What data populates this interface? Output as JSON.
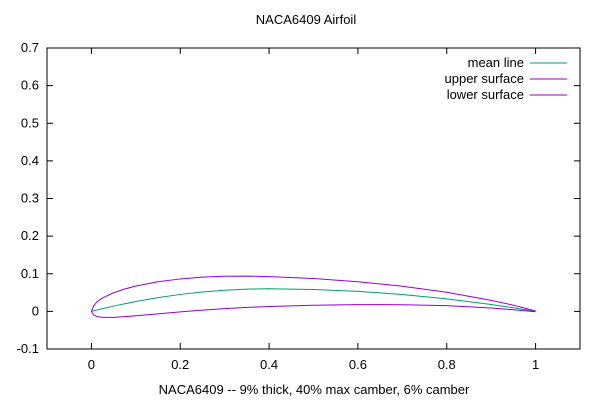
{
  "chart_data": {
    "type": "line",
    "title": "NACA6409 Airfoil",
    "xlabel": "NACA6409 -- 9% thick, 40% max camber, 6% camber",
    "ylabel": "",
    "xlim": [
      -0.1,
      1.1
    ],
    "ylim": [
      -0.1,
      0.7
    ],
    "x_ticks": [
      0,
      0.2,
      0.4,
      0.6,
      0.8,
      1
    ],
    "x_tick_labels": [
      "0",
      "0.2",
      "0.4",
      "0.6",
      "0.8",
      "1"
    ],
    "y_ticks": [
      -0.1,
      0,
      0.1,
      0.2,
      0.3,
      0.4,
      0.5,
      0.6,
      0.7
    ],
    "y_tick_labels": [
      "-0.1",
      "0",
      "0.1",
      "0.2",
      "0.3",
      "0.4",
      "0.5",
      "0.6",
      "0.7"
    ],
    "grid": false,
    "legend_position": "top-right",
    "series": [
      {
        "name": "mean line",
        "color": "#009e73",
        "x": [
          0,
          0.025,
          0.05,
          0.1,
          0.15,
          0.2,
          0.25,
          0.3,
          0.35,
          0.4,
          0.5,
          0.6,
          0.7,
          0.8,
          0.9,
          0.95,
          1.0
        ],
        "y": [
          0,
          0.0073,
          0.0141,
          0.0263,
          0.0366,
          0.045,
          0.0516,
          0.0563,
          0.0591,
          0.06,
          0.0583,
          0.0533,
          0.045,
          0.0333,
          0.0183,
          0.0096,
          0
        ]
      },
      {
        "name": "upper surface",
        "color": "#9400d3",
        "x": [
          0,
          0.005,
          0.0125,
          0.025,
          0.05,
          0.075,
          0.1,
          0.15,
          0.2,
          0.25,
          0.3,
          0.35,
          0.4,
          0.5,
          0.6,
          0.7,
          0.8,
          0.9,
          0.95,
          1.0
        ],
        "y": [
          0,
          0.0145,
          0.0254,
          0.0358,
          0.0495,
          0.0594,
          0.0673,
          0.0786,
          0.0862,
          0.0909,
          0.0932,
          0.0937,
          0.0925,
          0.0873,
          0.0788,
          0.0669,
          0.0507,
          0.0292,
          0.0164,
          0.0009
        ]
      },
      {
        "name": "lower surface",
        "color": "#9400d3",
        "x": [
          0,
          0.005,
          0.0125,
          0.025,
          0.05,
          0.075,
          0.1,
          0.15,
          0.2,
          0.25,
          0.3,
          0.35,
          0.4,
          0.5,
          0.6,
          0.7,
          0.8,
          0.9,
          0.95,
          1.0
        ],
        "y": [
          0,
          -0.0095,
          -0.0137,
          -0.0159,
          -0.0159,
          -0.0141,
          -0.0118,
          -0.0068,
          -0.0012,
          0.0034,
          0.0073,
          0.0105,
          0.0128,
          0.0162,
          0.0179,
          0.0177,
          0.0153,
          0.0091,
          0.0043,
          -0.0009
        ]
      }
    ]
  }
}
